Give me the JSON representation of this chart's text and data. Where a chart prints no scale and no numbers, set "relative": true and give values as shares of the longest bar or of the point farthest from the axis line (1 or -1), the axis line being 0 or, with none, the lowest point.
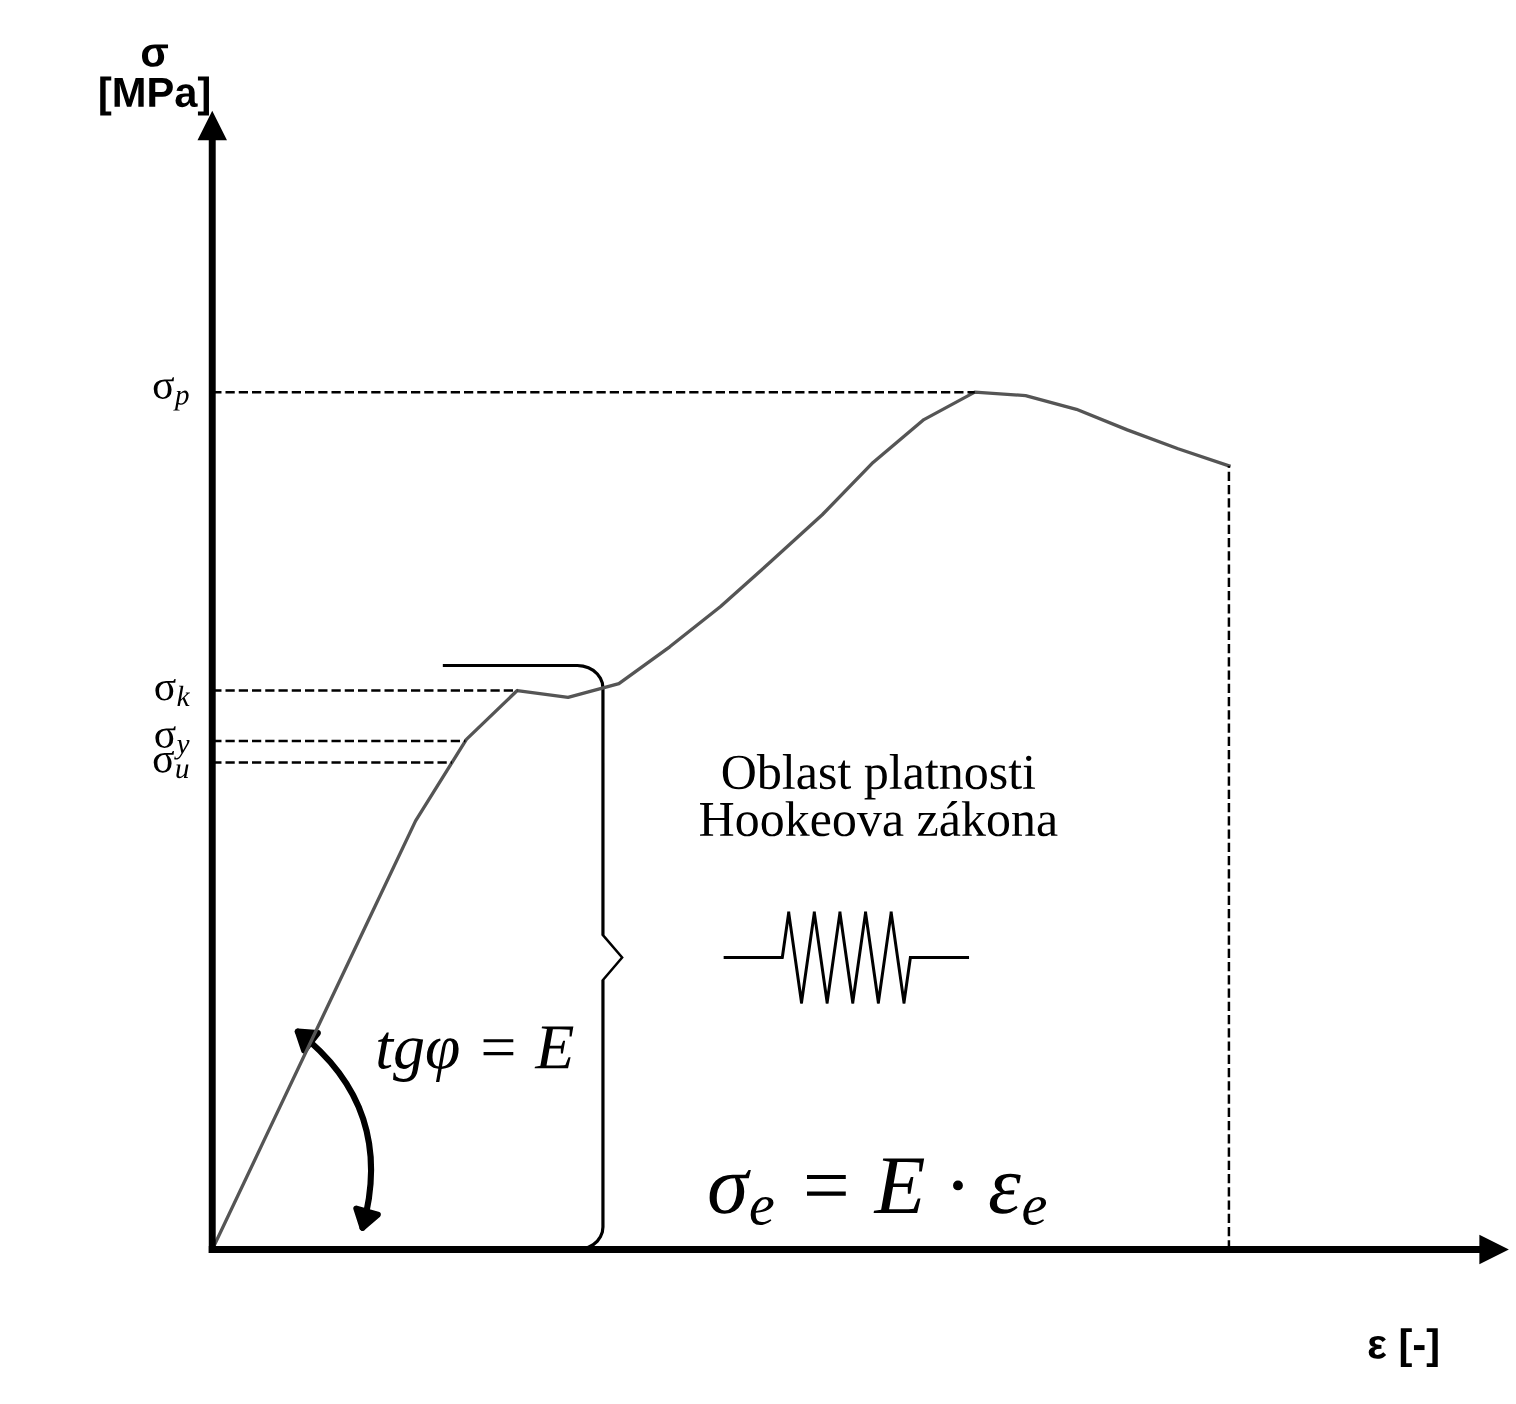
{
  "chart_data": {
    "type": "line",
    "relative": true,
    "xlabel": "ε [-]",
    "categories": [
      null,
      null,
      null,
      null,
      null,
      null,
      null,
      null,
      null,
      null,
      null,
      null,
      null,
      null,
      null,
      null,
      null,
      null,
      null,
      null,
      null
    ],
    "series": [
      {
        "color": "#555555",
        "values": [
          0,
          0.125,
          0.25,
          0.375,
          0.5,
          0.595,
          0.652,
          0.644,
          0.66,
          0.703,
          0.75,
          0.803,
          0.857,
          0.918,
          0.968,
          1.0,
          0.996,
          0.98,
          0.956,
          0.934,
          0.914
        ]
      }
    ],
    "ref_lines": [
      {
        "axis": "y",
        "value": 1.0,
        "label": "σ$_{p}$",
        "line_style": "dashed",
        "color": "#000000"
      },
      {
        "axis": "y",
        "value": 0.652,
        "label": "σ$_{k}$",
        "line_style": "dashed",
        "color": "#000000"
      },
      {
        "axis": "y",
        "value": 0.593,
        "label": "σ$_{y}$",
        "line_style": "dashed",
        "color": "#000000"
      },
      {
        "axis": "y",
        "value": 0.568,
        "label": "σ$_{u}$",
        "line_style": "dashed",
        "color": "#000000"
      }
    ],
    "annotations": [
      "Oblast platnosti\nHookeova zákona",
      "tgφ = E",
      "σ$_{e}$ = E · ε$_{e}$",
      "σ\n[MPa]"
    ],
    "line_style": "solid"
  }
}
